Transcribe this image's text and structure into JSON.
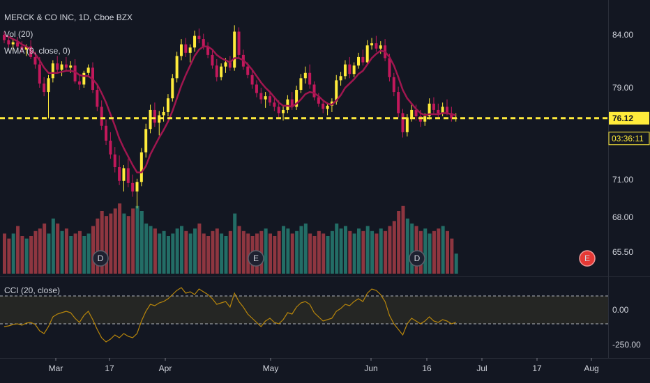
{
  "legend": {
    "title": "MERCK & CO INC, 1D, Cboe BZX",
    "vol": "Vol (20)",
    "wma": "WMA (9, close, 0)",
    "cci": "CCI (20, close)"
  },
  "price_axis": {
    "ticks": [
      "84.00",
      "79.00",
      "71.00",
      "68.00",
      "65.50"
    ],
    "last_price": "76.12",
    "countdown": "03:36:11"
  },
  "cci_axis": {
    "ticks": [
      "0.00",
      "-250.00"
    ]
  },
  "time_axis": {
    "labels": [
      "Mar",
      "17",
      "Apr",
      "May",
      "Jun",
      "16",
      "Jul",
      "17",
      "Aug"
    ]
  },
  "events": [
    {
      "label": "D",
      "kind": "dividend",
      "date": "Mar 12"
    },
    {
      "label": "E",
      "kind": "earnings",
      "date": "Apr 30"
    },
    {
      "label": "D",
      "kind": "dividend",
      "date": "Jun 14"
    },
    {
      "label": "E",
      "kind": "earnings",
      "date": "Jul 30",
      "upcoming": true
    }
  ],
  "colors": {
    "background": "#131722",
    "up": "#ffeb3b",
    "down": "#c2185b",
    "wma": "#a0164f",
    "vol_up": "#26776e",
    "vol_down": "#9c3a44",
    "last_price_line": "#ffeb3b",
    "cci": "#b8860b",
    "earnings_badge": "#e53935"
  },
  "chart_data": [
    {
      "type": "candlestick",
      "title": "MERCK & CO INC, 1D, Cboe BZX",
      "ylim": [
        64.0,
        85.5
      ],
      "ohlc": [
        [
          84.0,
          84.3,
          83.2,
          83.5
        ],
        [
          83.5,
          83.9,
          82.8,
          83.1
        ],
        [
          83.1,
          83.6,
          82.5,
          83.3
        ],
        [
          83.3,
          83.8,
          82.7,
          82.9
        ],
        [
          82.9,
          83.4,
          82.3,
          82.6
        ],
        [
          82.6,
          83.1,
          82.0,
          82.9
        ],
        [
          82.9,
          83.5,
          81.7,
          81.9
        ],
        [
          81.9,
          82.4,
          80.8,
          81.2
        ],
        [
          81.2,
          81.9,
          79.0,
          79.4
        ],
        [
          79.4,
          80.0,
          78.2,
          78.6
        ],
        [
          78.6,
          80.2,
          76.1,
          79.9
        ],
        [
          79.9,
          81.6,
          79.5,
          81.3
        ],
        [
          81.3,
          82.0,
          80.4,
          80.7
        ],
        [
          80.7,
          81.5,
          80.1,
          81.2
        ],
        [
          81.2,
          81.9,
          80.6,
          80.9
        ],
        [
          80.9,
          81.5,
          80.4,
          81.1
        ],
        [
          81.1,
          81.7,
          79.4,
          79.6
        ],
        [
          79.6,
          80.2,
          78.8,
          79.3
        ],
        [
          79.3,
          80.6,
          79.0,
          80.4
        ],
        [
          80.4,
          81.2,
          80.0,
          80.9
        ],
        [
          80.9,
          81.4,
          78.5,
          78.8
        ],
        [
          78.8,
          79.3,
          76.8,
          77.2
        ],
        [
          77.2,
          77.8,
          75.0,
          75.4
        ],
        [
          75.4,
          76.0,
          73.6,
          74.0
        ],
        [
          74.0,
          74.8,
          72.3,
          72.7
        ],
        [
          72.7,
          73.4,
          71.0,
          71.5
        ],
        [
          71.5,
          72.6,
          69.8,
          70.2
        ],
        [
          70.2,
          71.7,
          69.2,
          71.4
        ],
        [
          71.4,
          72.3,
          69.6,
          70.0
        ],
        [
          70.0,
          70.8,
          68.7,
          69.2
        ],
        [
          69.2,
          70.4,
          67.6,
          70.1
        ],
        [
          70.1,
          73.3,
          69.7,
          72.9
        ],
        [
          72.9,
          75.6,
          72.4,
          75.1
        ],
        [
          75.1,
          77.4,
          74.7,
          76.9
        ],
        [
          76.9,
          77.6,
          75.3,
          75.7
        ],
        [
          75.7,
          76.8,
          74.5,
          76.4
        ],
        [
          76.4,
          77.2,
          75.8,
          76.7
        ],
        [
          76.7,
          78.4,
          76.3,
          78.0
        ],
        [
          78.0,
          80.3,
          77.7,
          79.9
        ],
        [
          79.9,
          82.4,
          79.5,
          82.0
        ],
        [
          82.0,
          83.6,
          81.6,
          83.1
        ],
        [
          83.1,
          83.7,
          81.9,
          82.3
        ],
        [
          82.3,
          83.1,
          81.4,
          82.8
        ],
        [
          82.8,
          84.4,
          82.4,
          83.9
        ],
        [
          83.9,
          84.6,
          83.2,
          83.6
        ],
        [
          83.6,
          84.1,
          82.6,
          82.9
        ],
        [
          82.9,
          83.3,
          81.8,
          82.1
        ],
        [
          82.1,
          82.6,
          80.8,
          81.1
        ],
        [
          81.1,
          81.7,
          79.6,
          80.0
        ],
        [
          80.0,
          81.3,
          79.7,
          81.0
        ],
        [
          81.0,
          81.8,
          80.4,
          81.4
        ],
        [
          81.4,
          82.0,
          80.6,
          80.9
        ],
        [
          80.9,
          84.9,
          80.6,
          84.3
        ],
        [
          84.3,
          84.7,
          81.8,
          82.1
        ],
        [
          82.1,
          82.6,
          80.7,
          81.0
        ],
        [
          81.0,
          81.4,
          79.9,
          80.2
        ],
        [
          80.2,
          80.6,
          78.9,
          79.3
        ],
        [
          79.3,
          79.7,
          78.1,
          78.5
        ],
        [
          78.5,
          79.0,
          77.5,
          77.9
        ],
        [
          77.9,
          78.6,
          77.1,
          78.2
        ],
        [
          78.2,
          78.7,
          77.3,
          77.6
        ],
        [
          77.6,
          78.1,
          76.8,
          77.2
        ],
        [
          77.2,
          77.8,
          76.2,
          76.6
        ],
        [
          76.6,
          77.3,
          75.9,
          76.9
        ],
        [
          76.9,
          78.3,
          76.6,
          77.9
        ],
        [
          77.9,
          78.6,
          76.9,
          77.2
        ],
        [
          77.2,
          79.2,
          76.9,
          78.8
        ],
        [
          78.8,
          80.3,
          78.5,
          79.9
        ],
        [
          79.9,
          81.0,
          79.4,
          80.4
        ],
        [
          80.4,
          81.2,
          78.9,
          79.3
        ],
        [
          79.3,
          79.6,
          77.8,
          78.1
        ],
        [
          78.1,
          78.5,
          77.2,
          77.5
        ],
        [
          77.5,
          77.9,
          76.6,
          77.0
        ],
        [
          77.0,
          77.6,
          76.4,
          77.3
        ],
        [
          77.3,
          78.0,
          76.7,
          77.7
        ],
        [
          77.7,
          80.2,
          77.4,
          79.7
        ],
        [
          79.7,
          80.5,
          79.2,
          80.1
        ],
        [
          80.1,
          81.6,
          79.8,
          81.2
        ],
        [
          81.2,
          81.9,
          79.9,
          80.3
        ],
        [
          80.3,
          81.4,
          80.0,
          81.1
        ],
        [
          81.1,
          82.3,
          80.8,
          81.9
        ],
        [
          81.9,
          82.6,
          81.1,
          81.4
        ],
        [
          81.4,
          83.5,
          81.1,
          83.0
        ],
        [
          83.0,
          83.7,
          82.6,
          83.2
        ],
        [
          83.2,
          83.9,
          82.4,
          82.7
        ],
        [
          82.7,
          83.4,
          82.2,
          83.0
        ],
        [
          83.0,
          83.6,
          81.5,
          81.8
        ],
        [
          81.8,
          82.2,
          79.6,
          80.0
        ],
        [
          80.0,
          80.4,
          78.2,
          78.6
        ],
        [
          78.6,
          79.1,
          76.2,
          76.6
        ],
        [
          76.6,
          77.0,
          74.3,
          74.8
        ],
        [
          74.8,
          76.5,
          74.4,
          76.2
        ],
        [
          76.2,
          77.4,
          75.8,
          76.9
        ],
        [
          76.9,
          77.4,
          75.9,
          76.3
        ],
        [
          76.3,
          76.9,
          75.3,
          75.8
        ],
        [
          75.8,
          76.6,
          75.4,
          76.3
        ],
        [
          76.3,
          78.0,
          76.0,
          77.5
        ],
        [
          77.5,
          78.1,
          76.5,
          76.9
        ],
        [
          76.9,
          77.5,
          76.2,
          76.6
        ],
        [
          76.6,
          77.6,
          76.3,
          77.2
        ],
        [
          77.2,
          77.9,
          76.4,
          76.6
        ],
        [
          76.6,
          77.2,
          75.8,
          76.1
        ],
        [
          76.1,
          76.6,
          75.8,
          76.12
        ]
      ]
    },
    {
      "type": "line",
      "name": "WMA (9, close, 0)",
      "values": [
        84.0,
        83.8,
        83.6,
        83.4,
        83.1,
        82.9,
        82.6,
        82.2,
        81.6,
        80.9,
        80.4,
        80.4,
        80.4,
        80.5,
        80.6,
        80.6,
        80.5,
        80.2,
        80.1,
        80.1,
        79.8,
        79.3,
        78.5,
        77.6,
        76.5,
        75.4,
        74.2,
        73.3,
        72.5,
        71.7,
        71.0,
        71.0,
        71.6,
        72.7,
        73.5,
        74.3,
        75.0,
        75.8,
        76.8,
        78.0,
        79.2,
        80.2,
        81.1,
        82.0,
        82.6,
        82.9,
        82.9,
        82.6,
        82.1,
        81.8,
        81.6,
        81.4,
        81.8,
        81.8,
        81.6,
        81.2,
        80.7,
        80.1,
        79.5,
        79.0,
        78.6,
        78.1,
        77.6,
        77.3,
        77.3,
        77.2,
        77.5,
        77.9,
        78.4,
        78.6,
        78.5,
        78.2,
        77.8,
        77.5,
        77.4,
        77.8,
        78.3,
        79.0,
        79.4,
        79.8,
        80.3,
        80.6,
        81.2,
        81.8,
        82.2,
        82.5,
        82.4,
        81.9,
        81.1,
        80.0,
        78.8,
        78.0,
        77.5,
        77.0,
        76.6,
        76.4,
        76.5,
        76.5,
        76.5,
        76.6,
        76.6,
        76.5,
        76.4
      ]
    },
    {
      "type": "bar",
      "name": "Vol (20)",
      "values": [
        16,
        14,
        16,
        19,
        15,
        14,
        15,
        17,
        18,
        20,
        16,
        22,
        20,
        17,
        18,
        15,
        16,
        17,
        15,
        16,
        19,
        22,
        25,
        23,
        24,
        26,
        28,
        24,
        23,
        26,
        27,
        25,
        20,
        19,
        18,
        16,
        17,
        15,
        16,
        18,
        19,
        17,
        16,
        18,
        20,
        16,
        15,
        17,
        18,
        16,
        15,
        17,
        24,
        19,
        17,
        16,
        15,
        16,
        17,
        18,
        16,
        15,
        17,
        19,
        18,
        16,
        17,
        19,
        20,
        16,
        15,
        17,
        16,
        15,
        17,
        20,
        18,
        19,
        17,
        16,
        18,
        17,
        19,
        17,
        16,
        18,
        17,
        19,
        21,
        25,
        27,
        22,
        20,
        19,
        17,
        18,
        16,
        17,
        18,
        19,
        17,
        14,
        8
      ]
    },
    {
      "type": "line",
      "name": "CCI (20, close)",
      "ylim": [
        -300,
        200
      ],
      "values": [
        -120,
        -115,
        -105,
        -100,
        -110,
        -95,
        -90,
        -105,
        -150,
        -170,
        -120,
        -50,
        -30,
        -20,
        -10,
        -20,
        -60,
        -90,
        -40,
        -10,
        -70,
        -140,
        -200,
        -230,
        -210,
        -180,
        -200,
        -170,
        -190,
        -200,
        -170,
        -80,
        -10,
        40,
        30,
        50,
        60,
        80,
        110,
        140,
        160,
        120,
        130,
        110,
        150,
        130,
        110,
        80,
        40,
        50,
        60,
        20,
        120,
        60,
        20,
        -30,
        -60,
        -90,
        -120,
        -80,
        -60,
        -90,
        -100,
        -70,
        -20,
        -30,
        20,
        50,
        60,
        40,
        -20,
        -50,
        -80,
        -70,
        -60,
        -10,
        10,
        40,
        30,
        60,
        80,
        60,
        120,
        150,
        140,
        110,
        60,
        -40,
        -100,
        -140,
        -180,
        -100,
        -60,
        -80,
        -100,
        -80,
        -50,
        -80,
        -90,
        -70,
        -80,
        -100,
        -90
      ]
    }
  ]
}
